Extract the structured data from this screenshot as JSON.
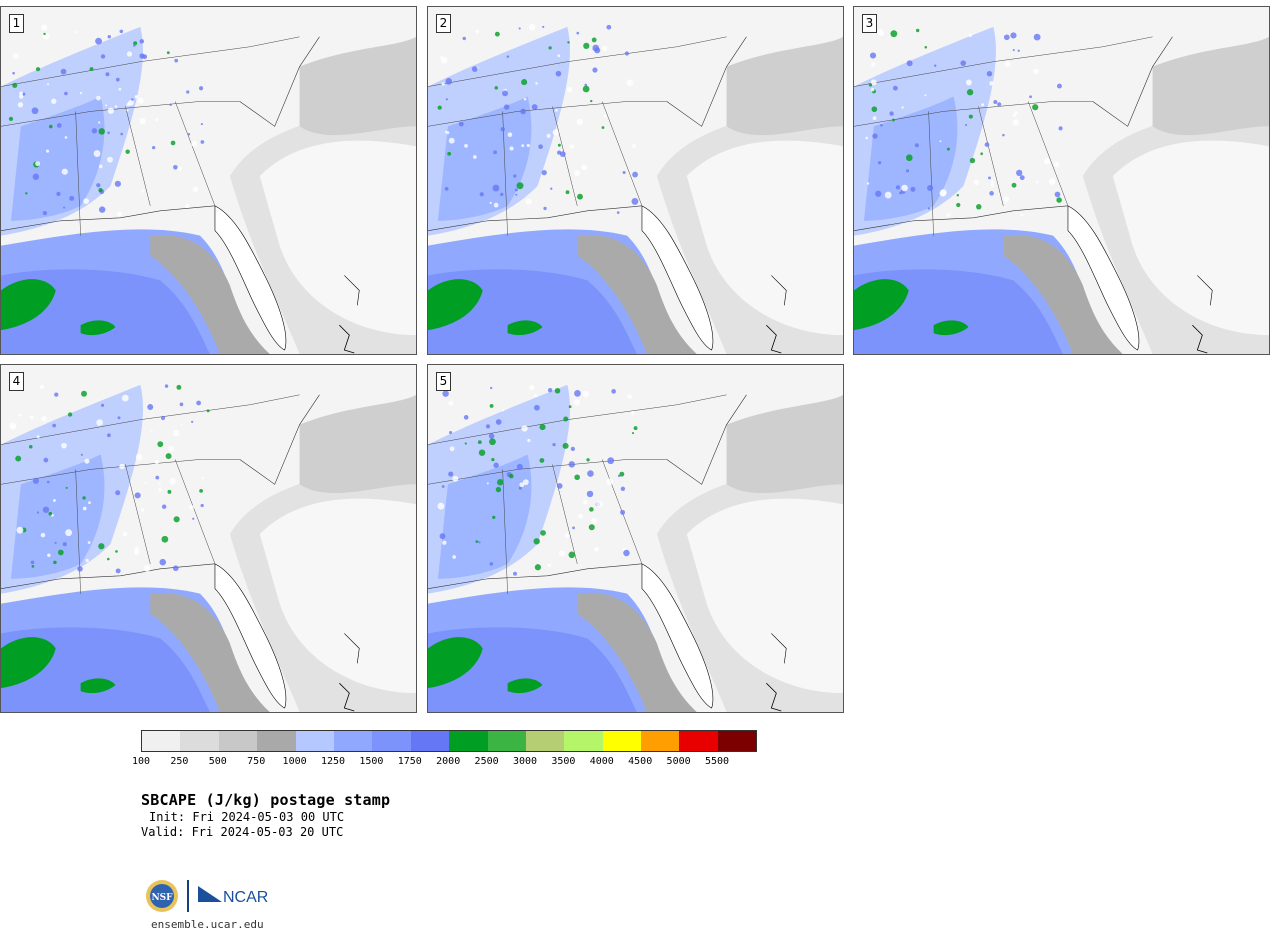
{
  "panels": [
    {
      "label": "1"
    },
    {
      "label": "2"
    },
    {
      "label": "3"
    },
    {
      "label": "4"
    },
    {
      "label": "5"
    }
  ],
  "colorbar": {
    "colors": [
      "#f0f0f0",
      "#dcdcdc",
      "#c8c8c8",
      "#a9a9a9",
      "#b5c8ff",
      "#90a9ff",
      "#7b93fa",
      "#6677f5",
      "#009e22",
      "#3cb443",
      "#b5cd73",
      "#b4f56a",
      "#ffff00",
      "#ff9e00",
      "#e80000",
      "#7d0000"
    ],
    "ticks": [
      "100",
      "250",
      "500",
      "750",
      "1000",
      "1250",
      "1500",
      "1750",
      "2000",
      "2500",
      "3000",
      "3500",
      "4000",
      "4500",
      "5000",
      "5500"
    ]
  },
  "title": "SBCAPE (J/kg) postage stamp",
  "init": "Init: Fri 2024-05-03 00 UTC",
  "valid": "Valid: Fri 2024-05-03 20 UTC",
  "logo": {
    "nsf": "NSF",
    "ncar": "NCAR"
  },
  "url": "ensemble.ucar.edu"
}
